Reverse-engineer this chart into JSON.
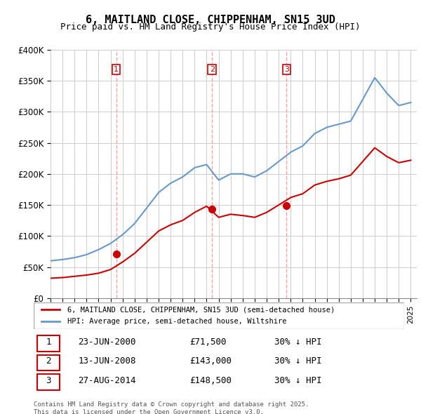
{
  "title": "6, MAITLAND CLOSE, CHIPPENHAM, SN15 3UD",
  "subtitle": "Price paid vs. HM Land Registry's House Price Index (HPI)",
  "xlabel": "",
  "ylabel": "",
  "ylim": [
    0,
    400000
  ],
  "yticks": [
    0,
    50000,
    100000,
    150000,
    200000,
    250000,
    300000,
    350000,
    400000
  ],
  "ytick_labels": [
    "£0",
    "£50K",
    "£100K",
    "£150K",
    "£200K",
    "£250K",
    "£300K",
    "£350K",
    "£400K"
  ],
  "background_color": "#ffffff",
  "grid_color": "#cccccc",
  "red_line_color": "#cc0000",
  "blue_line_color": "#6699cc",
  "purchase_marker_color": "#cc0000",
  "purchase_vline_color": "#ff6666",
  "purchases": [
    {
      "date": 2000.47,
      "price": 71500,
      "label": "1",
      "table_date": "23-JUN-2000",
      "table_price": "£71,500",
      "table_hpi": "30% ↓ HPI"
    },
    {
      "date": 2008.45,
      "price": 143000,
      "label": "2",
      "table_date": "13-JUN-2008",
      "table_price": "£143,000",
      "table_hpi": "30% ↓ HPI"
    },
    {
      "date": 2014.65,
      "price": 148500,
      "label": "3",
      "table_date": "27-AUG-2014",
      "table_price": "£148,500",
      "table_hpi": "30% ↓ HPI"
    }
  ],
  "legend_entry1": "6, MAITLAND CLOSE, CHIPPENHAM, SN15 3UD (semi-detached house)",
  "legend_entry2": "HPI: Average price, semi-detached house, Wiltshire",
  "footnote": "Contains HM Land Registry data © Crown copyright and database right 2025.\nThis data is licensed under the Open Government Licence v3.0.",
  "hpi_data": {
    "years": [
      1995,
      1996,
      1997,
      1998,
      1999,
      2000,
      2001,
      2002,
      2003,
      2004,
      2005,
      2006,
      2007,
      2008,
      2009,
      2010,
      2011,
      2012,
      2013,
      2014,
      2015,
      2016,
      2017,
      2018,
      2019,
      2020,
      2021,
      2022,
      2023,
      2024,
      2025
    ],
    "hpi_values": [
      60000,
      62000,
      65000,
      70000,
      78000,
      88000,
      102000,
      120000,
      145000,
      170000,
      185000,
      195000,
      210000,
      215000,
      190000,
      200000,
      200000,
      195000,
      205000,
      220000,
      235000,
      245000,
      265000,
      275000,
      280000,
      285000,
      320000,
      355000,
      330000,
      310000,
      315000
    ],
    "property_values": [
      32000,
      33000,
      35000,
      37000,
      40000,
      46000,
      58000,
      72000,
      90000,
      108000,
      118000,
      125000,
      138000,
      148000,
      130000,
      135000,
      133000,
      130000,
      138000,
      150000,
      162000,
      168000,
      182000,
      188000,
      192000,
      198000,
      220000,
      242000,
      228000,
      218000,
      222000
    ]
  }
}
